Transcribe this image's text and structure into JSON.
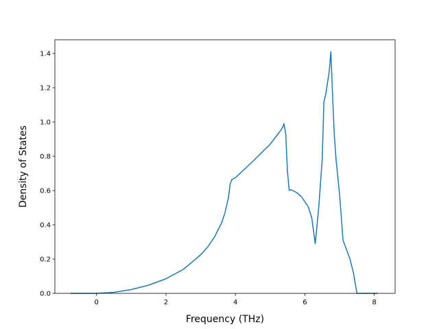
{
  "chart_data": {
    "type": "line",
    "title": "",
    "xlabel": "Frequency (THz)",
    "ylabel": "Density of States",
    "xlim": [
      -1.2,
      8.6
    ],
    "ylim": [
      0,
      1.48
    ],
    "x_ticks": [
      0,
      2,
      4,
      6,
      8
    ],
    "y_ticks": [
      0.0,
      0.2,
      0.4,
      0.6,
      0.8,
      1.0,
      1.2,
      1.4
    ],
    "x_tick_labels": [
      "0",
      "2",
      "4",
      "6",
      "8"
    ],
    "y_tick_labels": [
      "0.0",
      "0.2",
      "0.4",
      "0.6",
      "0.8",
      "1.0",
      "1.2",
      "1.4"
    ],
    "grid": false,
    "legend": "none",
    "series": [
      {
        "color": "#1f77b4",
        "x": [
          -0.75,
          0.0,
          0.5,
          1.0,
          1.5,
          2.0,
          2.5,
          3.0,
          3.2,
          3.4,
          3.6,
          3.7,
          3.8,
          3.85,
          3.9,
          4.0,
          4.5,
          5.0,
          5.3,
          5.35,
          5.4,
          5.45,
          5.5,
          5.55,
          5.6,
          5.75,
          5.9,
          6.1,
          6.2,
          6.3,
          6.4,
          6.5,
          6.55,
          6.6,
          6.7,
          6.75,
          6.8,
          6.85,
          6.9,
          7.0,
          7.1,
          7.3,
          7.4,
          7.5,
          8.1
        ],
        "y": [
          0.0,
          0.0,
          0.006,
          0.022,
          0.048,
          0.085,
          0.14,
          0.225,
          0.27,
          0.33,
          0.41,
          0.47,
          0.56,
          0.64,
          0.665,
          0.675,
          0.77,
          0.87,
          0.95,
          0.965,
          0.99,
          0.93,
          0.71,
          0.6,
          0.605,
          0.59,
          0.565,
          0.505,
          0.44,
          0.29,
          0.5,
          0.78,
          1.12,
          1.16,
          1.29,
          1.41,
          1.15,
          0.92,
          0.78,
          0.58,
          0.31,
          0.2,
          0.12,
          0.0,
          0.0
        ]
      }
    ]
  }
}
